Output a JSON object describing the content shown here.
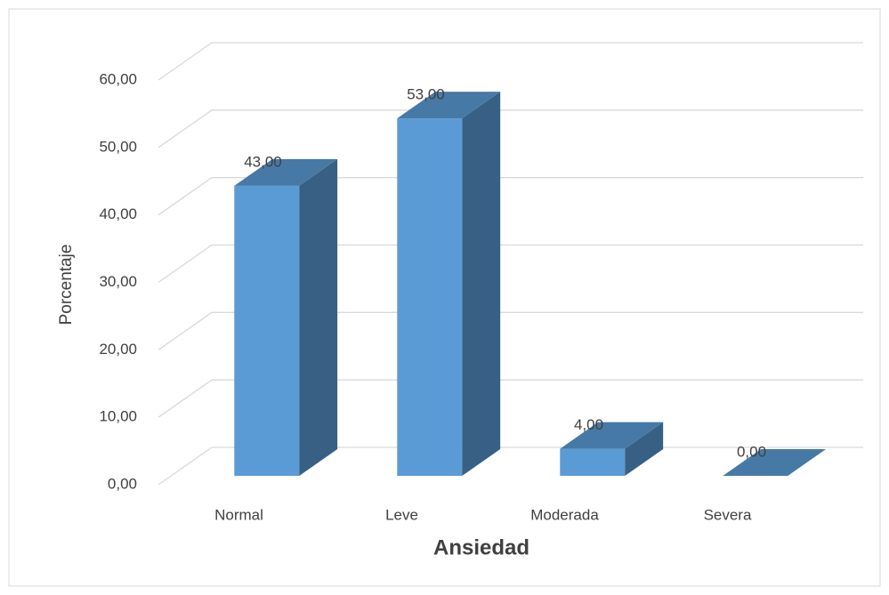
{
  "chart_data": {
    "type": "bar3d",
    "x_label": "Ansiedad",
    "y_label": "Porcentaje",
    "categories": [
      "Normal",
      "Leve",
      "Moderada",
      "Severa"
    ],
    "values": [
      43,
      53,
      4,
      0
    ],
    "value_labels": [
      "43,00",
      "53,00",
      "4,00",
      "0,00"
    ],
    "color": "#5b9bd5",
    "ylim": [
      0,
      60
    ],
    "yticks": [
      {
        "value": 0,
        "label": "0,00"
      },
      {
        "value": 10,
        "label": "10,00"
      },
      {
        "value": 20,
        "label": "20,00"
      },
      {
        "value": 30,
        "label": "30,00"
      },
      {
        "value": 40,
        "label": "40,00"
      },
      {
        "value": 50,
        "label": "50,00"
      },
      {
        "value": 60,
        "label": "60,00"
      }
    ],
    "grid": true
  }
}
